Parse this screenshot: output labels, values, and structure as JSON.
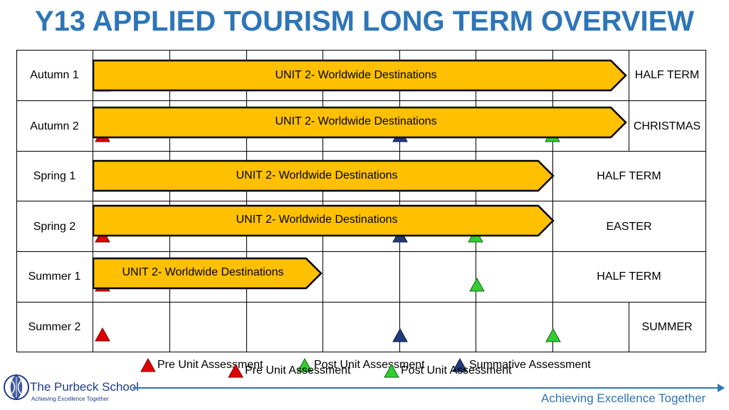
{
  "title": "Y13 APPLIED TOURISM LONG TERM OVERVIEW",
  "rows": [
    {
      "label": "Autumn 1",
      "unit": "UNIT 2- Worldwide Destinations",
      "end": "HALF TERM"
    },
    {
      "label": "Autumn 2",
      "unit": "UNIT 2- Worldwide Destinations",
      "end": "CHRISTMAS"
    },
    {
      "label": "Spring 1",
      "unit": "UNIT 2- Worldwide Destinations",
      "end": "HALF TERM"
    },
    {
      "label": "Spring 2",
      "unit": "UNIT 2- Worldwide Destinations",
      "end": "EASTER"
    },
    {
      "label": "Summer 1",
      "unit": "UNIT 2- Worldwide Destinations",
      "end": "HALF TERM"
    },
    {
      "label": "Summer 2",
      "unit": "",
      "end": "SUMMER"
    }
  ],
  "legend": {
    "pre": "Pre Unit Assessment",
    "post": "Post Unit Assessment",
    "summative": "Summative Assessment"
  },
  "school": {
    "name": "The Purbeck School",
    "tagline": "Achieving Excellence Together",
    "motto": "Achieving Excellence Together"
  },
  "colors": {
    "title": "#2E75B6",
    "arrow_fill": "#FFC000",
    "pre": "#E00000",
    "post": "#33CC33",
    "summative": "#1F3B7A"
  }
}
